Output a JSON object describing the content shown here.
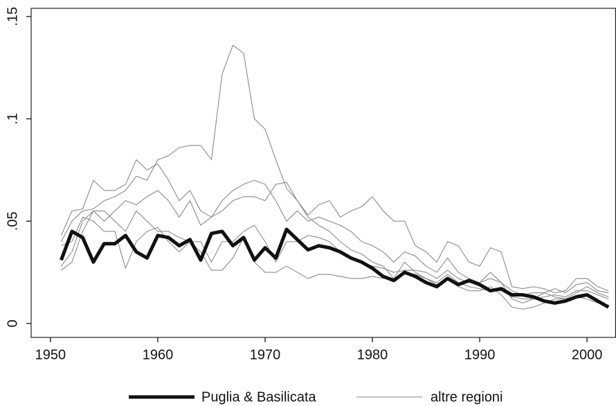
{
  "chart_data": {
    "type": "line",
    "x": [
      1951,
      1952,
      1953,
      1954,
      1955,
      1956,
      1957,
      1958,
      1959,
      1960,
      1961,
      1962,
      1963,
      1964,
      1965,
      1966,
      1967,
      1968,
      1969,
      1970,
      1971,
      1972,
      1973,
      1974,
      1975,
      1976,
      1977,
      1978,
      1979,
      1980,
      1981,
      1982,
      1983,
      1984,
      1985,
      1986,
      1987,
      1988,
      1989,
      1990,
      1991,
      1992,
      1993,
      1994,
      1995,
      1996,
      1997,
      1998,
      1999,
      2000,
      2001,
      2002
    ],
    "series": [
      {
        "name": "Puglia & Basilicata",
        "color": "#111111",
        "values": [
          0.031,
          0.045,
          0.042,
          0.03,
          0.039,
          0.039,
          0.043,
          0.035,
          0.032,
          0.043,
          0.042,
          0.038,
          0.041,
          0.031,
          0.044,
          0.045,
          0.038,
          0.042,
          0.031,
          0.037,
          0.032,
          0.046,
          0.041,
          0.036,
          0.038,
          0.037,
          0.035,
          0.032,
          0.03,
          0.027,
          0.023,
          0.021,
          0.025,
          0.023,
          0.02,
          0.018,
          0.022,
          0.019,
          0.021,
          0.019,
          0.016,
          0.017,
          0.014,
          0.014,
          0.013,
          0.011,
          0.01,
          0.011,
          0.013,
          0.014,
          0.011,
          0.008
        ]
      },
      {
        "name": "altre regioni",
        "color": "#8a8a8a",
        "values": [
          [
            0.04,
            0.05,
            0.055,
            0.056,
            0.06,
            0.062,
            0.065,
            0.072,
            0.07,
            0.08,
            0.082,
            0.086,
            0.087,
            0.087,
            0.08,
            0.122,
            0.136,
            0.132,
            0.1,
            0.095,
            0.08,
            0.066,
            0.06,
            0.052,
            0.048,
            0.045,
            0.04,
            0.036,
            0.034,
            0.03,
            0.028,
            0.022,
            0.03,
            0.025,
            0.022,
            0.02,
            0.024,
            0.02,
            0.018,
            0.017,
            0.016,
            0.016,
            0.013,
            0.012,
            0.012,
            0.013,
            0.014,
            0.013,
            0.016,
            0.016,
            0.014,
            0.012
          ],
          [
            0.043,
            0.055,
            0.056,
            0.07,
            0.065,
            0.065,
            0.068,
            0.08,
            0.075,
            0.078,
            0.07,
            0.06,
            0.065,
            0.055,
            0.052,
            0.055,
            0.06,
            0.062,
            0.062,
            0.06,
            0.068,
            0.069,
            0.06,
            0.053,
            0.058,
            0.06,
            0.052,
            0.055,
            0.057,
            0.062,
            0.055,
            0.05,
            0.05,
            0.038,
            0.035,
            0.03,
            0.04,
            0.038,
            0.03,
            0.028,
            0.037,
            0.035,
            0.018,
            0.017,
            0.018,
            0.017,
            0.015,
            0.016,
            0.022,
            0.022,
            0.018,
            0.016
          ],
          [
            0.026,
            0.03,
            0.045,
            0.055,
            0.05,
            0.055,
            0.06,
            0.058,
            0.062,
            0.065,
            0.06,
            0.052,
            0.06,
            0.048,
            0.052,
            0.06,
            0.065,
            0.068,
            0.07,
            0.068,
            0.06,
            0.05,
            0.055,
            0.05,
            0.052,
            0.05,
            0.048,
            0.045,
            0.04,
            0.038,
            0.035,
            0.03,
            0.035,
            0.033,
            0.028,
            0.025,
            0.032,
            0.025,
            0.022,
            0.02,
            0.025,
            0.02,
            0.012,
            0.01,
            0.012,
            0.015,
            0.013,
            0.012,
            0.015,
            0.018,
            0.015,
            0.013
          ],
          [
            0.038,
            0.04,
            0.052,
            0.05,
            0.045,
            0.045,
            0.027,
            0.04,
            0.045,
            0.047,
            0.04,
            0.035,
            0.04,
            0.035,
            0.026,
            0.026,
            0.032,
            0.042,
            0.03,
            0.025,
            0.025,
            0.028,
            0.025,
            0.022,
            0.024,
            0.024,
            0.023,
            0.022,
            0.022,
            0.023,
            0.022,
            0.022,
            0.024,
            0.024,
            0.022,
            0.019,
            0.022,
            0.018,
            0.016,
            0.016,
            0.018,
            0.014,
            0.008,
            0.007,
            0.008,
            0.01,
            0.012,
            0.012,
            0.013,
            0.012,
            0.01,
            0.009
          ],
          [
            0.028,
            0.035,
            0.05,
            0.055,
            0.055,
            0.05,
            0.045,
            0.055,
            0.05,
            0.045,
            0.045,
            0.042,
            0.04,
            0.04,
            0.03,
            0.04,
            0.04,
            0.045,
            0.048,
            0.04,
            0.03,
            0.04,
            0.04,
            0.043,
            0.042,
            0.04,
            0.035,
            0.032,
            0.03,
            0.028,
            0.027,
            0.025,
            0.026,
            0.026,
            0.025,
            0.022,
            0.026,
            0.022,
            0.02,
            0.02,
            0.022,
            0.02,
            0.016,
            0.014,
            0.015,
            0.015,
            0.017,
            0.015,
            0.019,
            0.02,
            0.016,
            0.015
          ]
        ]
      }
    ],
    "xlim": [
      1948.2,
      2002.7
    ],
    "xticks": [
      1950,
      1960,
      1970,
      1980,
      1990,
      2000
    ],
    "ylim": [
      -0.0068,
      0.154
    ],
    "yticks": [
      {
        "value": 0,
        "label": "0"
      },
      {
        "value": 0.05,
        "label": ".05"
      },
      {
        "value": 0.1,
        "label": ".1"
      },
      {
        "value": 0.15,
        "label": ".15"
      }
    ],
    "legend": "bottom"
  }
}
